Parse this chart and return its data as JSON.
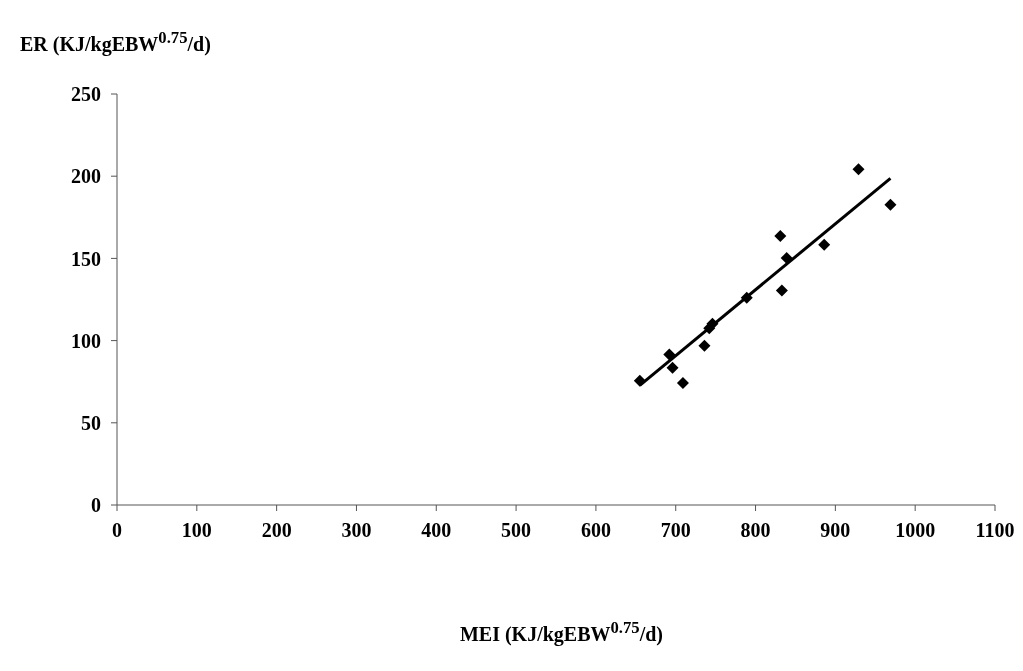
{
  "chart_data": {
    "type": "scatter",
    "xlabel": "MEI (KJ/kgEBW$^{0.75}$/d)",
    "ylabel": "ER (KJ/kgEBW$^{0.75}$/d)",
    "xlim": [
      0,
      1100
    ],
    "xticks": [
      0,
      100,
      200,
      300,
      400,
      500,
      600,
      700,
      800,
      900,
      1000,
      1100
    ],
    "ylim": [
      0,
      250
    ],
    "yticks": [
      0,
      50,
      100,
      150,
      200,
      250
    ],
    "grid": false,
    "marker": "diamond",
    "series": [
      {
        "color": "#000000",
        "x": [
          655,
          692,
          696,
          709,
          736,
          742,
          746,
          789,
          831,
          833,
          839,
          886,
          929,
          969
        ],
        "values": [
          75.6,
          91.5,
          83.5,
          74.2,
          96.8,
          107.5,
          110.3,
          126,
          163.6,
          130.5,
          150.2,
          158.3,
          204.3,
          182.7
        ]
      },
      {
        "type": "line",
        "color": "#000000",
        "marker": "none",
        "line_style": "solid",
        "x": [
          655,
          969
        ],
        "values": [
          72.8,
          198.7
        ]
      }
    ]
  }
}
